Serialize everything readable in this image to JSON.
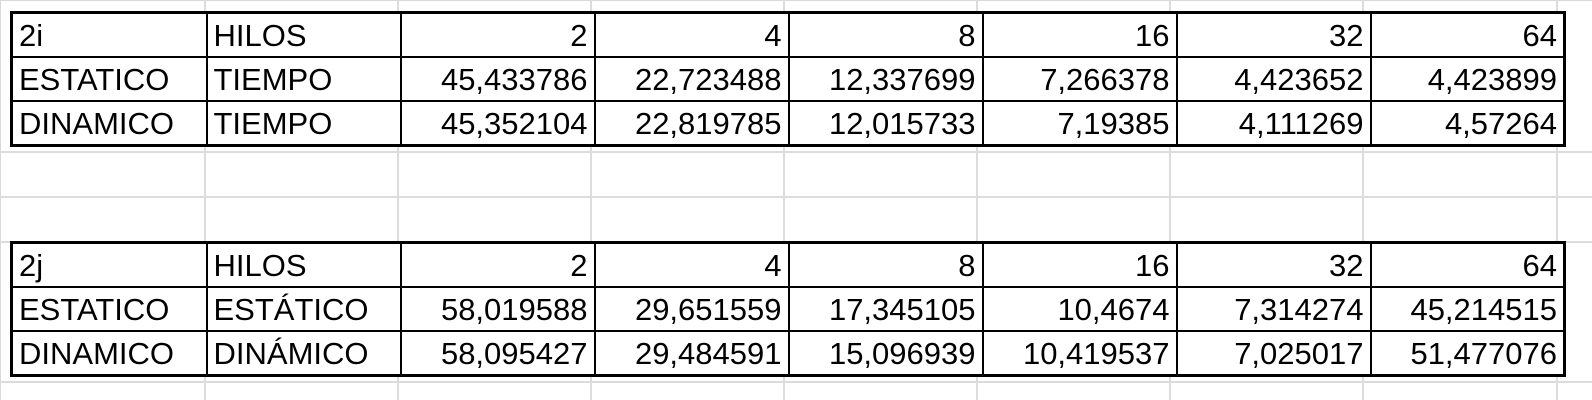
{
  "tables": [
    {
      "header": [
        "2i",
        "HILOS",
        "2",
        "4",
        "8",
        "16",
        "32",
        "64"
      ],
      "rows": [
        [
          "ESTATICO",
          "TIEMPO",
          "45,433786",
          "22,723488",
          "12,337699",
          "7,266378",
          "4,423652",
          "4,423899"
        ],
        [
          "DINAMICO",
          "TIEMPO",
          "45,352104",
          "22,819785",
          "12,015733",
          "7,19385",
          "4,111269",
          "4,57264"
        ]
      ]
    },
    {
      "header": [
        "2j",
        "HILOS",
        "2",
        "4",
        "8",
        "16",
        "32",
        "64"
      ],
      "rows": [
        [
          "ESTATICO",
          "ESTÁTICO",
          "58,019588",
          "29,651559",
          "17,345105",
          "10,4674",
          "7,314274",
          "45,214515"
        ],
        [
          "DINAMICO",
          "DINÁMICO",
          "58,095427",
          "29,484591",
          "15,096939",
          "10,419537",
          "7,025017",
          "51,477076"
        ]
      ]
    }
  ]
}
